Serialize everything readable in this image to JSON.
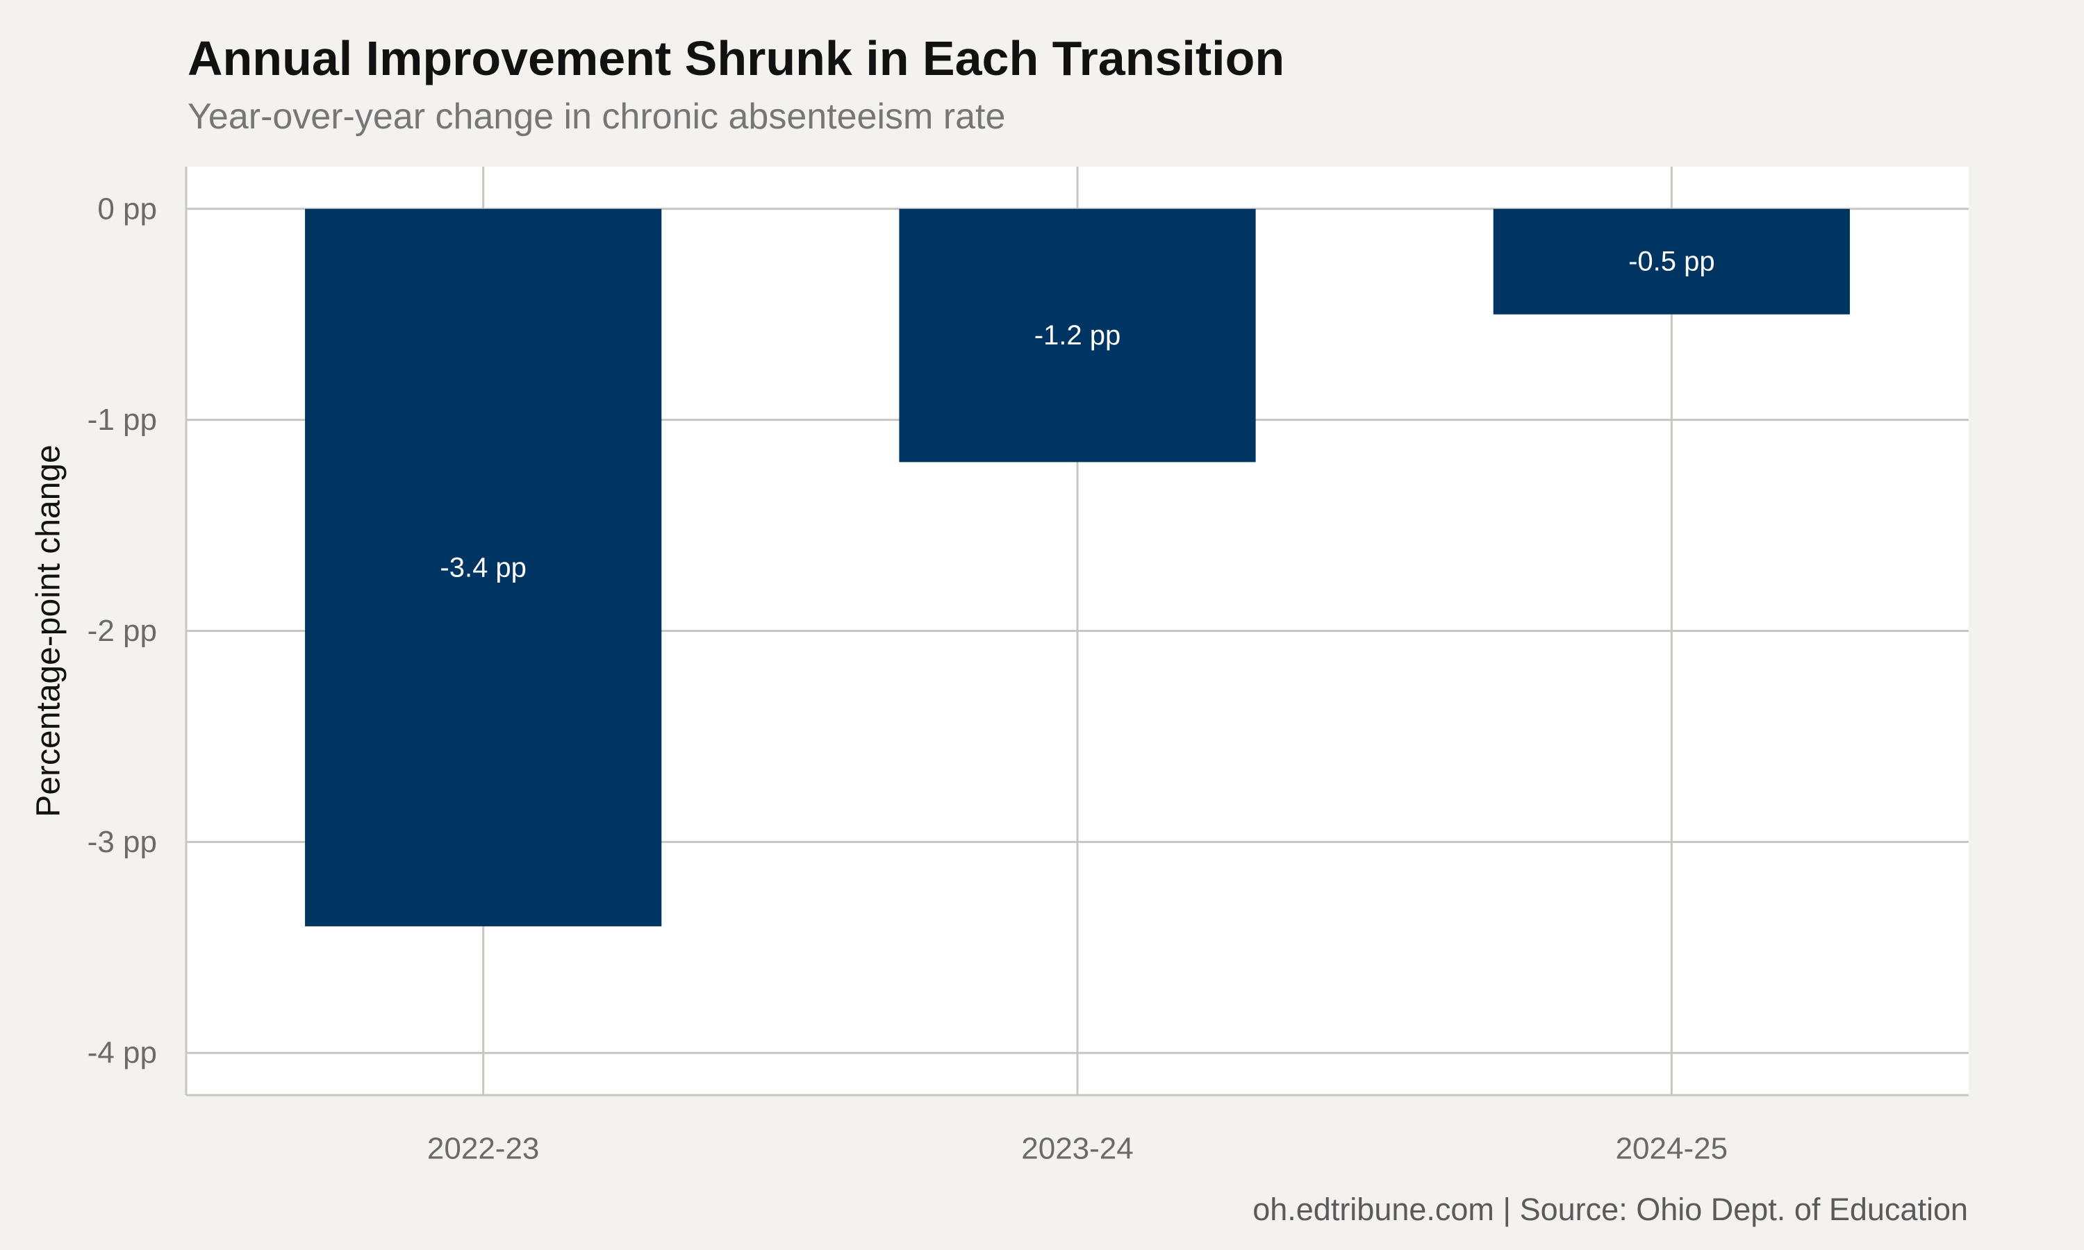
{
  "title": "Annual Improvement Shrunk in Each Transition",
  "subtitle": "Year-over-year change in chronic absenteeism rate",
  "caption": "oh.edtribune.com | Source: Ohio Dept. of Education",
  "colors": {
    "background": "#f4f2ee",
    "panel": "#ffffff",
    "bar": "#003463",
    "grid": "#c8c6c0",
    "bar_label": "#ffffff"
  },
  "chart_data": {
    "type": "bar",
    "categories": [
      "2022-23",
      "2023-24",
      "2024-25"
    ],
    "values": [
      -3.4,
      -1.2,
      -0.5
    ],
    "data_labels": [
      "-3.4 pp",
      "-1.2 pp",
      "-0.5 pp"
    ],
    "ylabel": "Percentage-point change",
    "xlabel": "",
    "ylim": [
      -4.2,
      0.2
    ],
    "yticks": [
      0,
      -1,
      -2,
      -3,
      -4
    ],
    "ytick_labels": [
      "0 pp",
      "-1 pp",
      "-2 pp",
      "-3 pp",
      "-4 pp"
    ],
    "grid": true,
    "legend": "none"
  }
}
